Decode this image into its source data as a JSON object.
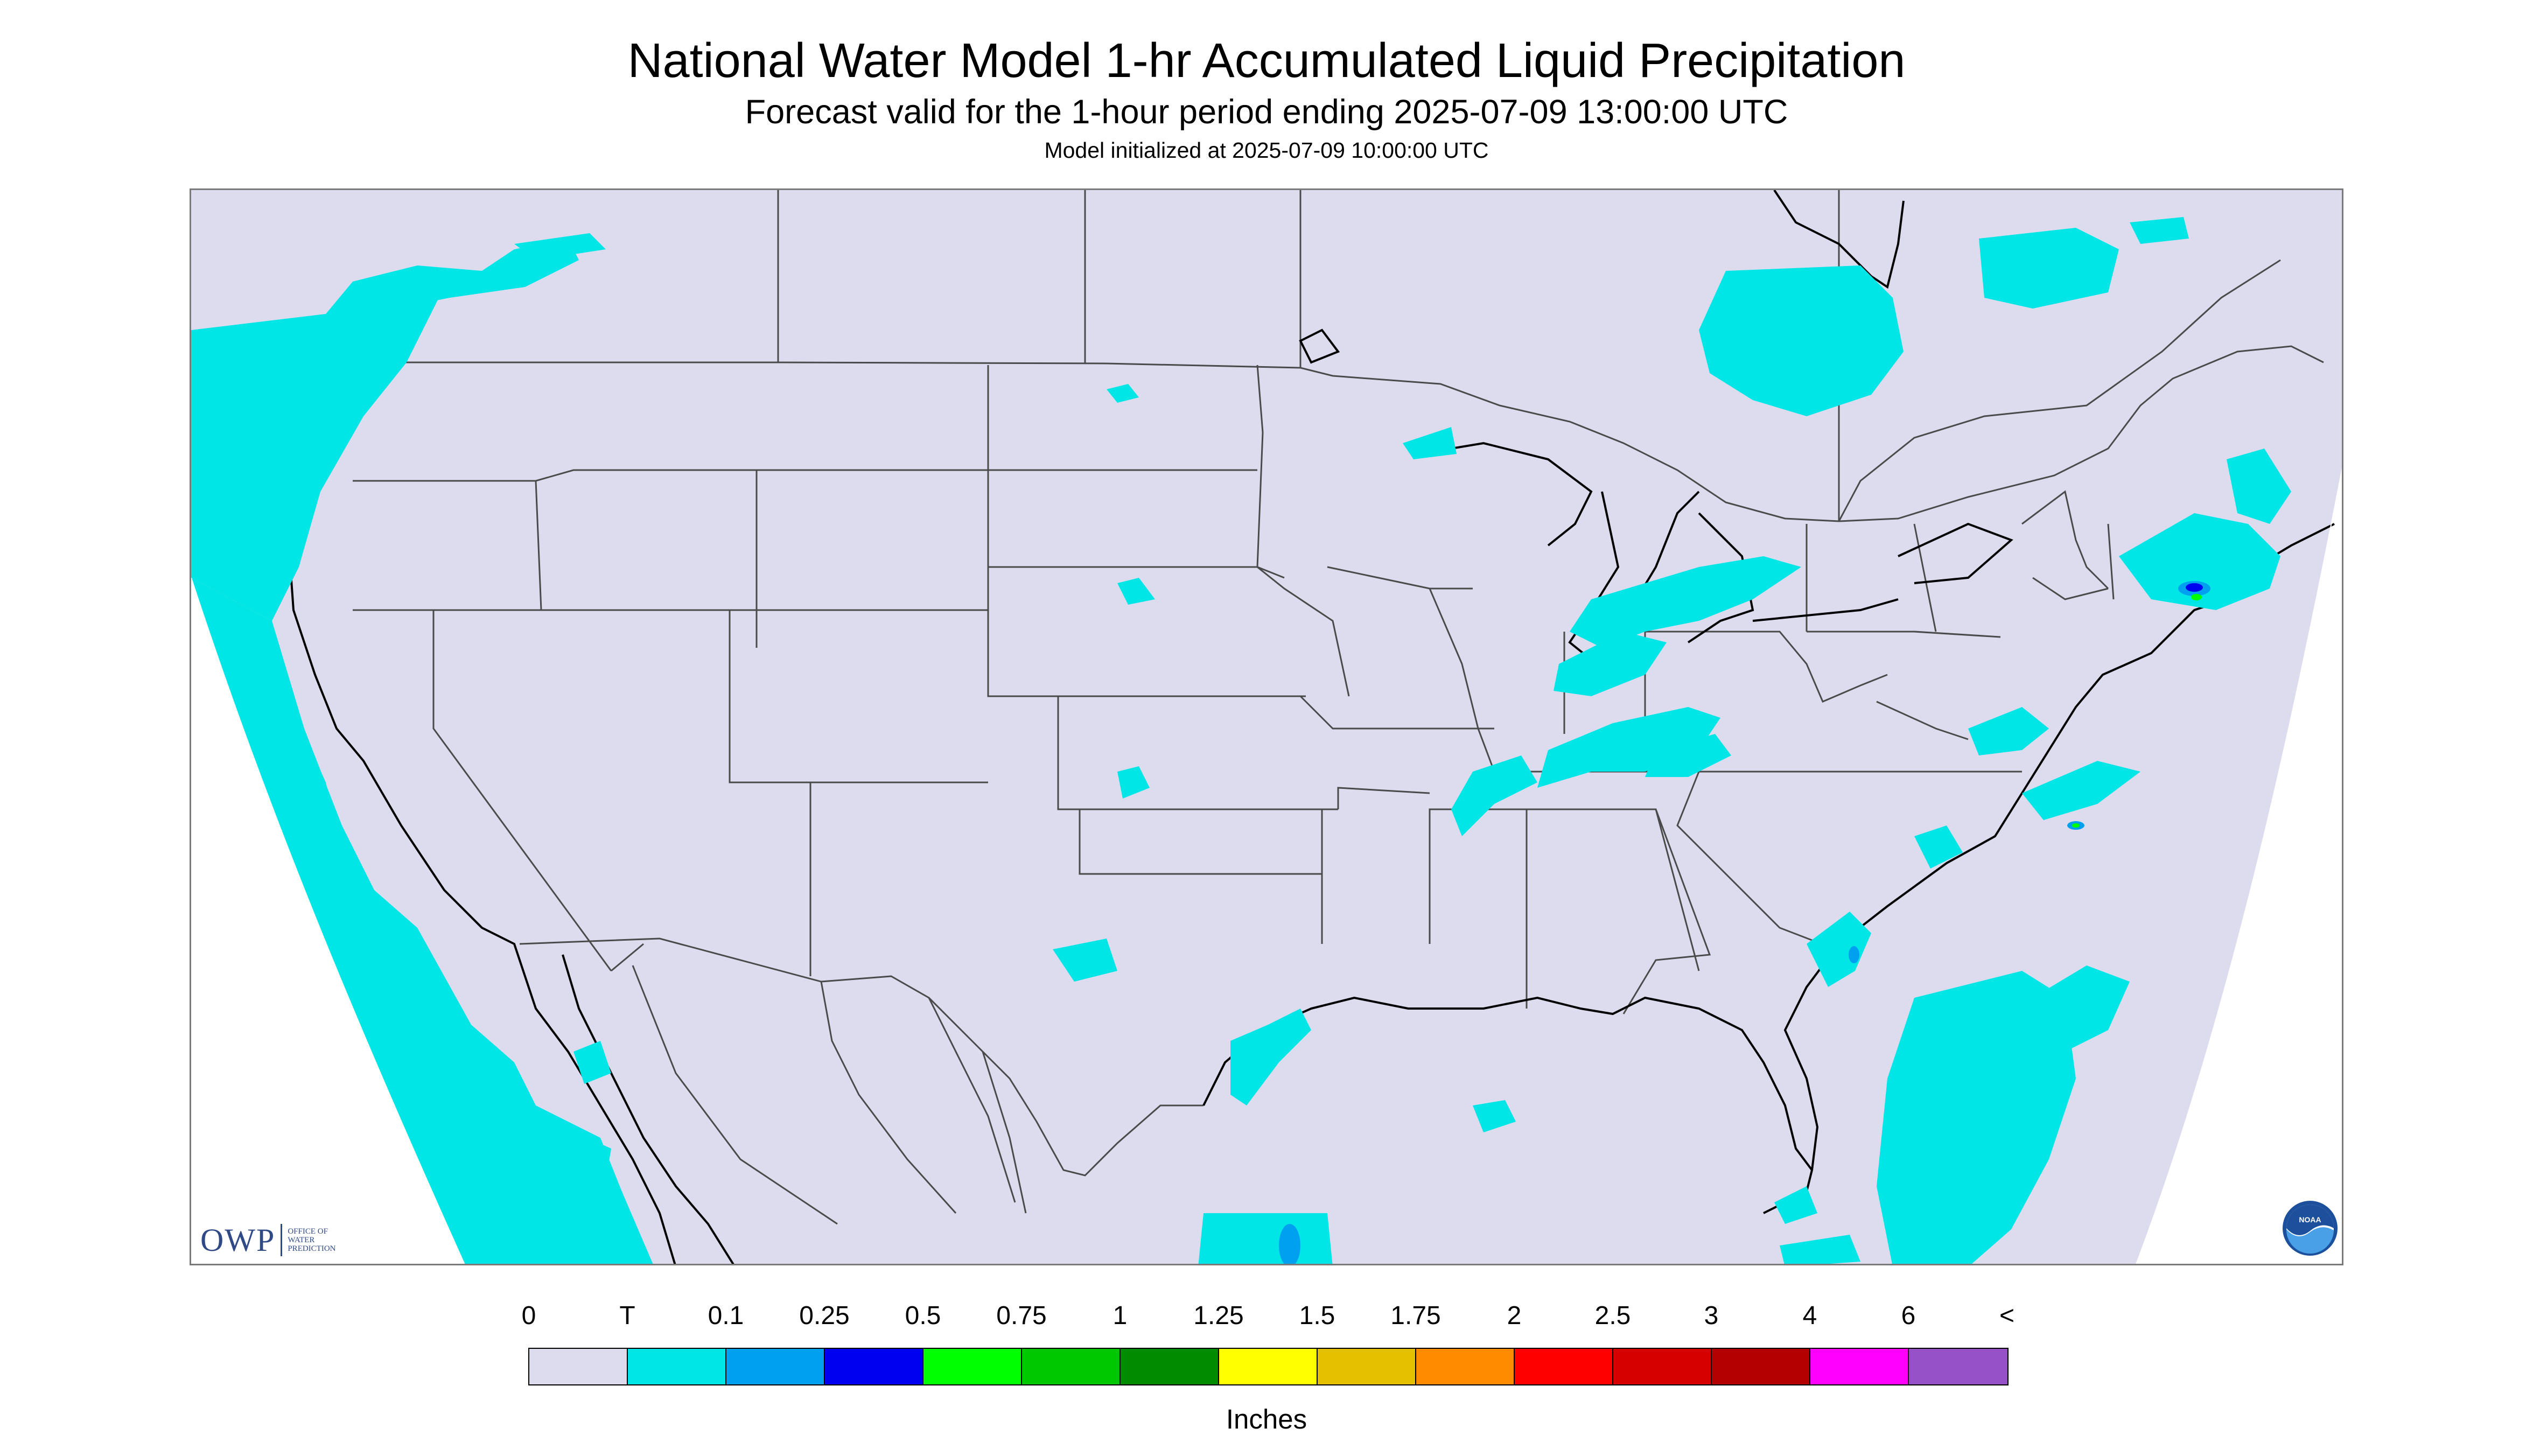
{
  "header": {
    "title": "National Water Model 1-hr Accumulated Liquid Precipitation",
    "subtitle": "Forecast valid for the 1-hour period ending 2025-07-09 13:00:00 UTC",
    "init_line": "Model initialized at 2025-07-09 10:00:00 UTC"
  },
  "logos": {
    "owp_main": "OWP",
    "owp_sub_1": "OFFICE OF",
    "owp_sub_2": "WATER",
    "owp_sub_3": "PREDICTION",
    "noaa": "NOAA"
  },
  "colors": {
    "background": "#dcdcee",
    "no_data": "#ffffff",
    "border": "#4a4a4a",
    "coast": "#000000"
  },
  "legend": {
    "tick_labels": [
      "0",
      "T",
      "0.1",
      "0.25",
      "0.5",
      "0.75",
      "1",
      "1.25",
      "1.5",
      "1.75",
      "2",
      "2.5",
      "3",
      "4",
      "6",
      "<"
    ],
    "colors": [
      "#dcdcee",
      "#00e5e5",
      "#00a0f0",
      "#0000f0",
      "#00ff00",
      "#00c800",
      "#008c00",
      "#ffff00",
      "#e5c000",
      "#ff8c00",
      "#ff0000",
      "#d70000",
      "#b40000",
      "#ff00ff",
      "#9650c8"
    ],
    "units": "Inches"
  },
  "map": {
    "projection": "Lambert conformal (CONUS)",
    "precip_regions": [
      "Pacific Northwest coast",
      "Pacific Ocean off California and Baja",
      "Southern Ontario and Quebec",
      "Great Lakes and Ohio Valley",
      "Tennessee Valley",
      "New England",
      "Mid-Atlantic coast",
      "Carolina and Georgia coast",
      "Western Atlantic",
      "Texas Gulf coast",
      "Florida",
      "Northern Great Plains",
      "Southern High Plains"
    ],
    "max_category": "0.5"
  }
}
